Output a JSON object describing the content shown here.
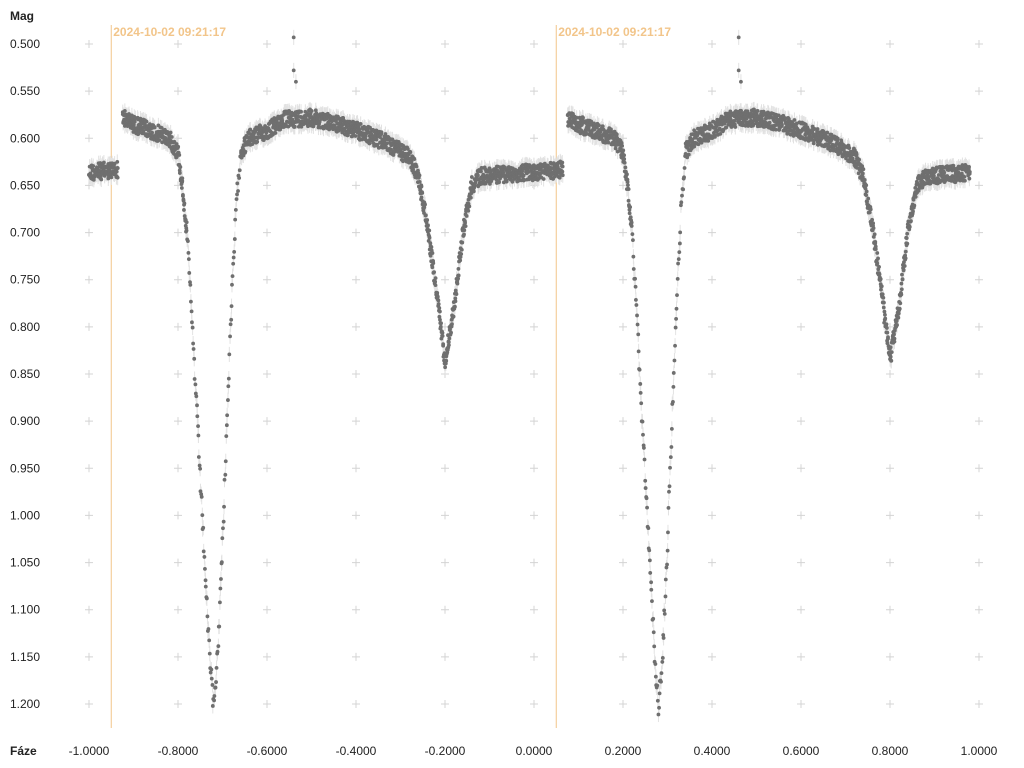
{
  "chart_data": {
    "type": "scatter",
    "title": "",
    "xlabel": "Fáze",
    "ylabel": "Mag",
    "xlim": [
      -1.04,
      1.06
    ],
    "ylim": [
      1.22,
      0.485
    ],
    "y_inverted": true,
    "grid": "plus-markers",
    "x_ticks": [
      -1.0,
      -0.8,
      -0.6,
      -0.4,
      -0.2,
      0.0,
      0.2,
      0.4,
      0.6,
      0.8,
      1.0
    ],
    "x_tick_labels": [
      "-1.0000",
      "-0.8000",
      "-0.6000",
      "-0.4000",
      "-0.2000",
      "0.0000",
      "0.2000",
      "0.4000",
      "0.6000",
      "0.8000",
      "1.0000"
    ],
    "y_ticks": [
      0.5,
      0.55,
      0.6,
      0.65,
      0.7,
      0.75,
      0.8,
      0.85,
      0.9,
      0.95,
      1.0,
      1.05,
      1.1,
      1.15,
      1.2
    ],
    "y_tick_labels": [
      "0.500",
      "0.550",
      "0.600",
      "0.650",
      "0.700",
      "0.750",
      "0.800",
      "0.850",
      "0.900",
      "0.950",
      "1.000",
      "1.050",
      "1.100",
      "1.150",
      "1.200"
    ],
    "markers": [
      {
        "x": -0.95,
        "label": "2024-10-02 09:21:17"
      },
      {
        "x": 0.05,
        "label": "2024-10-02 09:21:17"
      }
    ],
    "series": [
      {
        "phase_repeat": 1.0,
        "errorbar": 0.008,
        "light_curve": [
          [
            -1.0,
            0.636
          ],
          [
            -0.93,
            0.633
          ],
          [
            -0.925,
            0.578
          ],
          [
            -0.9,
            0.585
          ],
          [
            -0.86,
            0.592
          ],
          [
            -0.82,
            0.6
          ],
          [
            -0.8,
            0.615
          ],
          [
            -0.79,
            0.65
          ],
          [
            -0.78,
            0.7
          ],
          [
            -0.77,
            0.78
          ],
          [
            -0.76,
            0.87
          ],
          [
            -0.75,
            0.96
          ],
          [
            -0.74,
            1.05
          ],
          [
            -0.73,
            1.14
          ],
          [
            -0.72,
            1.205
          ],
          [
            -0.71,
            1.14
          ],
          [
            -0.7,
            1.03
          ],
          [
            -0.69,
            0.9
          ],
          [
            -0.68,
            0.78
          ],
          [
            -0.67,
            0.68
          ],
          [
            -0.66,
            0.615
          ],
          [
            -0.64,
            0.6
          ],
          [
            -0.6,
            0.592
          ],
          [
            -0.56,
            0.58
          ],
          [
            -0.5,
            0.578
          ],
          [
            -0.44,
            0.585
          ],
          [
            -0.38,
            0.595
          ],
          [
            -0.33,
            0.605
          ],
          [
            -0.28,
            0.62
          ],
          [
            -0.26,
            0.64
          ],
          [
            -0.24,
            0.69
          ],
          [
            -0.22,
            0.76
          ],
          [
            -0.2,
            0.835
          ],
          [
            -0.18,
            0.78
          ],
          [
            -0.16,
            0.7
          ],
          [
            -0.14,
            0.65
          ],
          [
            -0.12,
            0.64
          ],
          [
            -0.06,
            0.638
          ],
          [
            0.0,
            0.636
          ]
        ],
        "spikes": [
          [
            -0.54,
            0.493
          ],
          [
            -0.54,
            0.528
          ],
          [
            -0.535,
            0.54
          ]
        ]
      }
    ]
  }
}
